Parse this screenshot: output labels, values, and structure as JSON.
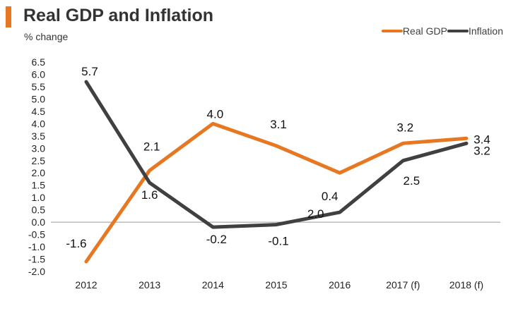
{
  "header": {
    "title": "Real GDP and Inflation",
    "subtitle": "% change"
  },
  "chart_data": {
    "type": "line",
    "title": "Real GDP and Inflation",
    "ylabel": "% change",
    "xlabel": "",
    "categories": [
      "2012",
      "2013",
      "2014",
      "2015",
      "2016",
      "2017 (f)",
      "2018 (f)"
    ],
    "ylim": [
      -2.0,
      6.5
    ],
    "yticks": [
      "-2.0",
      "-1.5",
      "-1.0",
      "-0.5",
      "0.0",
      "0.5",
      "1.0",
      "1.5",
      "2.0",
      "2.5",
      "3.0",
      "3.5",
      "4.0",
      "4.5",
      "5.0",
      "5.5",
      "6.0",
      "6.5"
    ],
    "legend_position": "top-right",
    "series": [
      {
        "name": "Real GDP",
        "color": "#e87722",
        "values": [
          -1.6,
          2.1,
          4.0,
          3.1,
          2.0,
          3.2,
          3.4
        ],
        "labels": [
          "-1.6",
          "2.1",
          "4.0",
          "3.1",
          "2.0",
          "3.2",
          "3.4"
        ]
      },
      {
        "name": "Inflation",
        "color": "#404040",
        "values": [
          5.7,
          1.6,
          -0.2,
          -0.1,
          0.4,
          2.5,
          3.2
        ],
        "labels": [
          "5.7",
          "1.6",
          "-0.2",
          "-0.1",
          "0.4",
          "2.5",
          "3.2"
        ]
      }
    ]
  }
}
